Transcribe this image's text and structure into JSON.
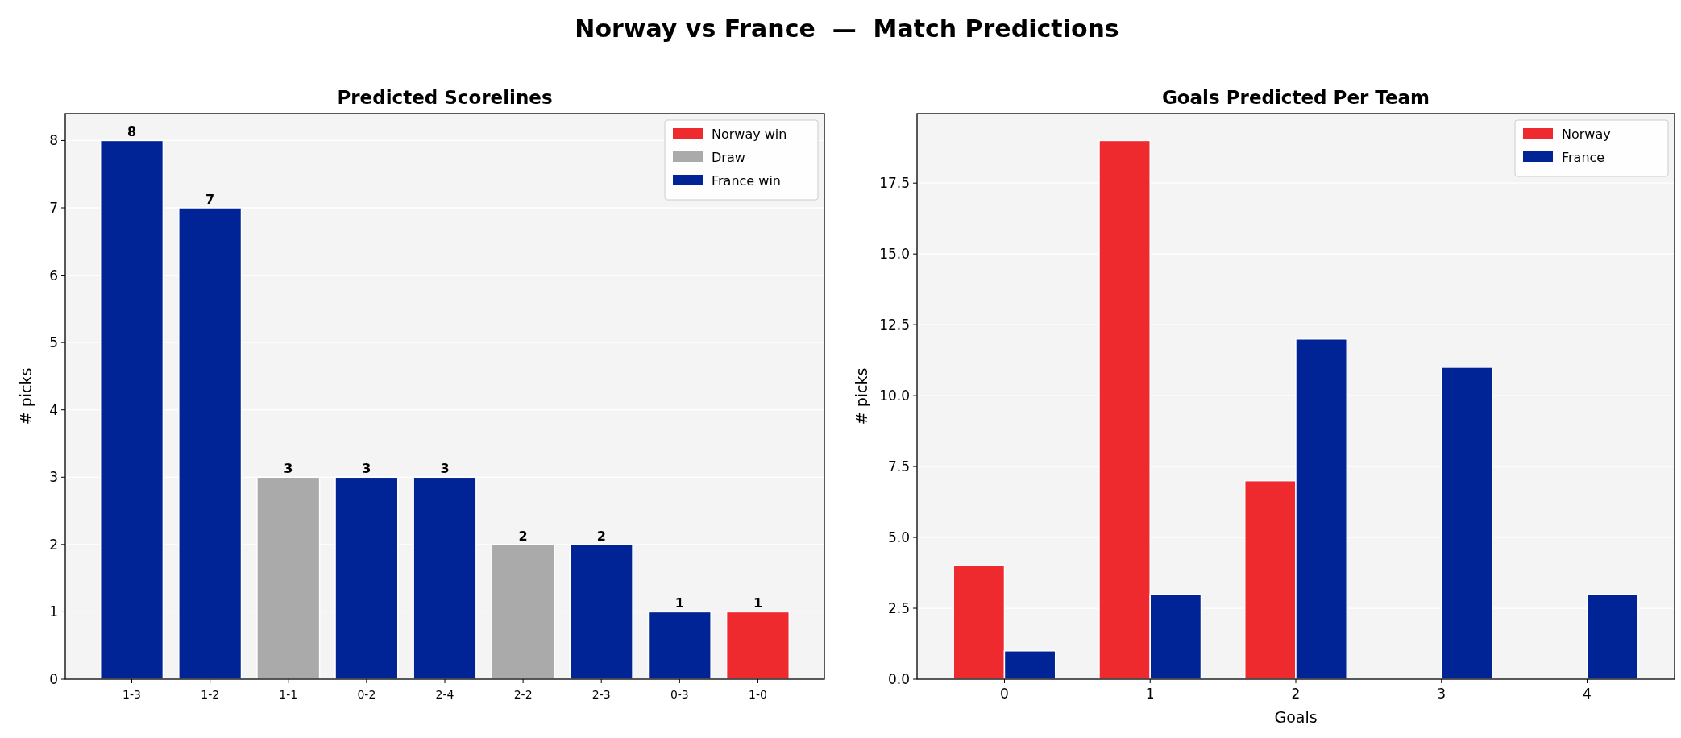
{
  "chart_data": [
    {
      "type": "bar",
      "title": "Predicted Scorelines",
      "ylabel": "# picks",
      "annotations": [
        "Norway vs France  —  Match Predictions"
      ],
      "categories": [
        "1-3",
        "1-2",
        "1-1",
        "0-2",
        "2-4",
        "2-2",
        "2-3",
        "0-3",
        "1-0"
      ],
      "stacked": true,
      "series": [
        {
          "name": "Norway win",
          "color": "#ee2a2f",
          "values": [
            null,
            null,
            null,
            null,
            null,
            null,
            null,
            null,
            1
          ]
        },
        {
          "name": "Draw",
          "color": "#aaaaaa",
          "values": [
            null,
            null,
            3,
            null,
            null,
            2,
            null,
            null,
            null
          ]
        },
        {
          "name": "France win",
          "color": "#002395",
          "values": [
            8,
            7,
            null,
            3,
            3,
            null,
            2,
            1,
            null
          ]
        }
      ],
      "ylim": [
        0,
        8.4
      ],
      "yticks": [
        0,
        1,
        2,
        3,
        4,
        5,
        6,
        7,
        8
      ],
      "grid": "y",
      "legend": "top right",
      "data_labels": true
    },
    {
      "type": "bar",
      "title": "Goals Predicted Per Team",
      "xlabel": "Goals",
      "ylabel": "# picks",
      "categories": [
        "0",
        "1",
        "2",
        "3",
        "4"
      ],
      "series": [
        {
          "name": "Norway",
          "color": "#ee2a2f",
          "values": [
            4,
            19,
            7,
            0,
            0
          ]
        },
        {
          "name": "France",
          "color": "#002395",
          "values": [
            1,
            3,
            12,
            11,
            3
          ]
        }
      ],
      "ylim": [
        0,
        19.95
      ],
      "yticks": [
        {
          "value": 0,
          "label": "0.0"
        },
        {
          "value": 2.5,
          "label": "2.5"
        },
        {
          "value": 5,
          "label": "5.0"
        },
        {
          "value": 7.5,
          "label": "7.5"
        },
        {
          "value": 10,
          "label": "10.0"
        },
        {
          "value": 12.5,
          "label": "12.5"
        },
        {
          "value": 15,
          "label": "15.0"
        },
        {
          "value": 17.5,
          "label": "17.5"
        }
      ],
      "grid": "y",
      "legend": "top right"
    }
  ]
}
